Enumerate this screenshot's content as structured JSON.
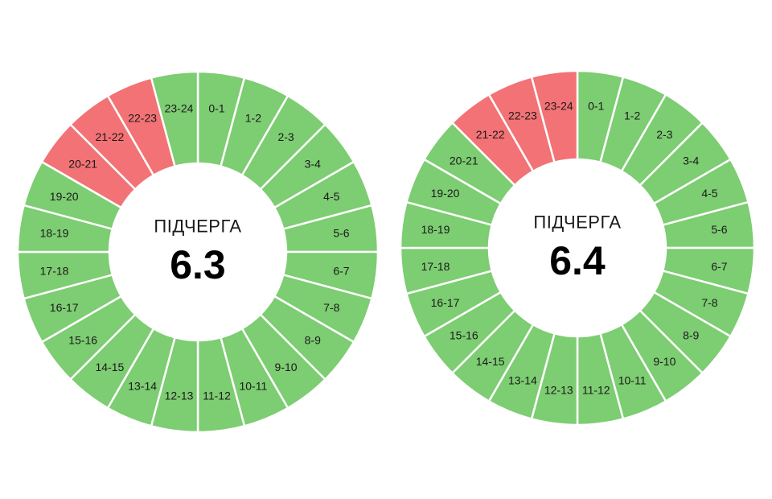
{
  "colors": {
    "on": "#7dcd72",
    "off": "#f27275",
    "gap": "#ffffff"
  },
  "chart_data": [
    {
      "type": "pie",
      "title": "ПІДЧЕРГА",
      "subtitle": "6.3",
      "categories": [
        "0-1",
        "1-2",
        "2-3",
        "3-4",
        "4-5",
        "5-6",
        "6-7",
        "7-8",
        "8-9",
        "9-10",
        "10-11",
        "11-12",
        "12-13",
        "13-14",
        "14-15",
        "15-16",
        "16-17",
        "17-18",
        "18-19",
        "19-20",
        "20-21",
        "21-22",
        "22-23",
        "23-24"
      ],
      "values": [
        1,
        1,
        1,
        1,
        1,
        1,
        1,
        1,
        1,
        1,
        1,
        1,
        1,
        1,
        1,
        1,
        1,
        1,
        1,
        1,
        1,
        1,
        1,
        1
      ],
      "status": [
        "on",
        "on",
        "on",
        "on",
        "on",
        "on",
        "on",
        "on",
        "on",
        "on",
        "on",
        "on",
        "on",
        "on",
        "on",
        "on",
        "on",
        "on",
        "on",
        "on",
        "off",
        "off",
        "off",
        "on"
      ]
    },
    {
      "type": "pie",
      "title": "ПІДЧЕРГА",
      "subtitle": "6.4",
      "categories": [
        "0-1",
        "1-2",
        "2-3",
        "3-4",
        "4-5",
        "5-6",
        "6-7",
        "7-8",
        "8-9",
        "9-10",
        "10-11",
        "11-12",
        "12-13",
        "13-14",
        "14-15",
        "15-16",
        "16-17",
        "17-18",
        "18-19",
        "19-20",
        "20-21",
        "21-22",
        "22-23",
        "23-24"
      ],
      "values": [
        1,
        1,
        1,
        1,
        1,
        1,
        1,
        1,
        1,
        1,
        1,
        1,
        1,
        1,
        1,
        1,
        1,
        1,
        1,
        1,
        1,
        1,
        1,
        1
      ],
      "status": [
        "on",
        "on",
        "on",
        "on",
        "on",
        "on",
        "on",
        "on",
        "on",
        "on",
        "on",
        "on",
        "on",
        "on",
        "on",
        "on",
        "on",
        "on",
        "on",
        "on",
        "on",
        "off",
        "off",
        "off"
      ]
    }
  ]
}
